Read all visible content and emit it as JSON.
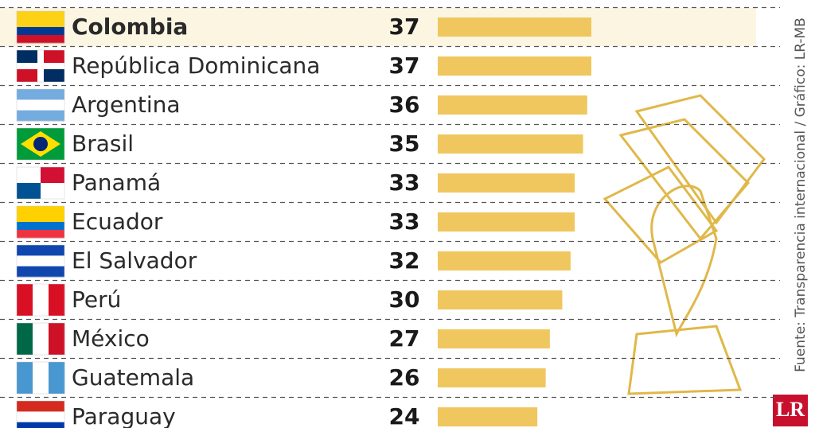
{
  "chart_data": {
    "type": "bar",
    "orientation": "horizontal",
    "categories": [
      "Colombia",
      "República Dominicana",
      "Argentina",
      "Brasil",
      "Panamá",
      "Ecuador",
      "El Salvador",
      "Perú",
      "México",
      "Guatemala",
      "Paraguay"
    ],
    "values": [
      37,
      37,
      36,
      35,
      33,
      33,
      32,
      30,
      27,
      26,
      24
    ],
    "color": "#f0c65e",
    "source": "Fuente: Transparencia internacional / Gráfico: LR-MB"
  },
  "logo": "LR"
}
